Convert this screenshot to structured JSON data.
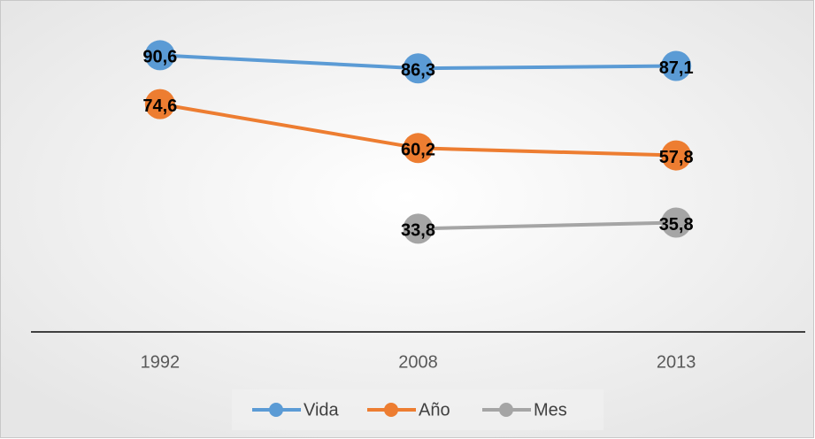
{
  "chart_data": {
    "type": "line",
    "categories": [
      "1992",
      "2008",
      "2013"
    ],
    "series": [
      {
        "name": "Vida",
        "color": "#5b9bd5",
        "values": [
          90.6,
          86.3,
          87.1
        ],
        "value_labels": [
          "90,6",
          "86,3",
          "87,1"
        ]
      },
      {
        "name": "Año",
        "color": "#ed7d31",
        "values": [
          74.6,
          60.2,
          57.8
        ],
        "value_labels": [
          "74,6",
          "60,2",
          "57,8"
        ]
      },
      {
        "name": "Mes",
        "color": "#a5a5a5",
        "values": [
          null,
          33.8,
          35.8
        ],
        "value_labels": [
          null,
          "33,8",
          "35,8"
        ]
      }
    ],
    "ylim": [
      0,
      100
    ],
    "legend": "bottom"
  }
}
